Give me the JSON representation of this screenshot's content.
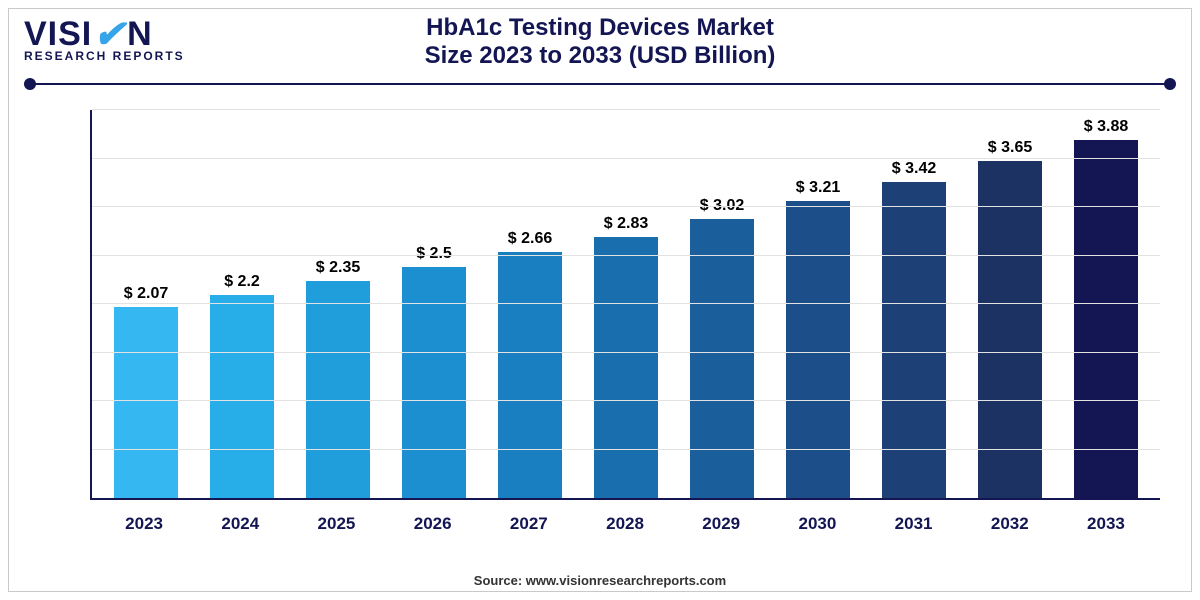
{
  "logo": {
    "brand_pre": "VISI",
    "brand_accent": "✔",
    "brand_post": "N",
    "sub": "RESEARCH REPORTS"
  },
  "title": {
    "line1": "HbA1c Testing Devices Market",
    "line2": "Size 2023 to 2033 (USD Billion)",
    "fontsize": 24,
    "color": "#141653"
  },
  "chart": {
    "type": "bar",
    "ylim": [
      0,
      4.2
    ],
    "grid_rows": 8,
    "grid_color": "#e2e2e2",
    "axis_color": "#141653",
    "background_color": "#ffffff",
    "bar_width_pct": 66,
    "label_prefix": "$ ",
    "label_fontsize": 16,
    "label_color": "#000000",
    "xlabel_fontsize": 17,
    "xlabel_color": "#141653",
    "categories": [
      "2023",
      "2024",
      "2025",
      "2026",
      "2027",
      "2028",
      "2029",
      "2030",
      "2031",
      "2032",
      "2033"
    ],
    "values": [
      2.07,
      2.2,
      2.35,
      2.5,
      2.66,
      2.83,
      3.02,
      3.21,
      3.42,
      3.65,
      3.88
    ],
    "value_labels": [
      "2.07",
      "2.2",
      "2.35",
      "2.5",
      "2.66",
      "2.83",
      "3.02",
      "3.21",
      "3.42",
      "3.65",
      "3.88"
    ],
    "bar_colors": [
      "#35b7f1",
      "#27aee8",
      "#1f9edb",
      "#1b8fcf",
      "#1a7fc0",
      "#196fae",
      "#1a5f9c",
      "#1c4f89",
      "#1d4076",
      "#1b3263",
      "#141653"
    ]
  },
  "source": "Source: www.visionresearchreports.com"
}
